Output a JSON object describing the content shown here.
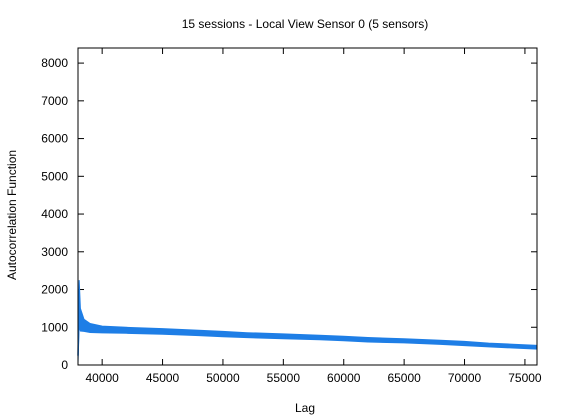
{
  "chart_data": {
    "type": "line",
    "title": "15 sessions - Local View Sensor 0 (5 sensors)",
    "xlabel": "Lag",
    "ylabel": "Autocorrelation Function",
    "xlim": [
      38000,
      76000
    ],
    "ylim": [
      0,
      8400
    ],
    "x_ticks": [
      40000,
      45000,
      50000,
      55000,
      60000,
      65000,
      70000,
      75000
    ],
    "y_ticks": [
      0,
      1000,
      2000,
      3000,
      4000,
      5000,
      6000,
      7000,
      8000
    ],
    "x_tick_labels": [
      "40000",
      "45000",
      "50000",
      "55000",
      "60000",
      "65000",
      "70000",
      "75000"
    ],
    "y_tick_labels": [
      "0",
      "1000",
      "2000",
      "3000",
      "4000",
      "5000",
      "6000",
      "7000",
      "8000"
    ],
    "grid": false,
    "legend": "none",
    "series": [
      {
        "color": "#1e7ee6",
        "x": [
          38000,
          38100,
          38200,
          38500,
          39000,
          40000,
          42000,
          45000,
          48000,
          50000,
          52000,
          55000,
          58000,
          60000,
          62000,
          65000,
          68000,
          70000,
          72000,
          74000,
          76000
        ],
        "values": [
          250,
          1650,
          1200,
          1050,
          980,
          940,
          920,
          890,
          850,
          820,
          790,
          760,
          730,
          700,
          670,
          640,
          600,
          570,
          530,
          500,
          470
        ],
        "noise": [
          200,
          600,
          300,
          160,
          120,
          90,
          80,
          75,
          70,
          70,
          65,
          65,
          60,
          60,
          60,
          55,
          55,
          55,
          50,
          50,
          50
        ]
      }
    ]
  }
}
